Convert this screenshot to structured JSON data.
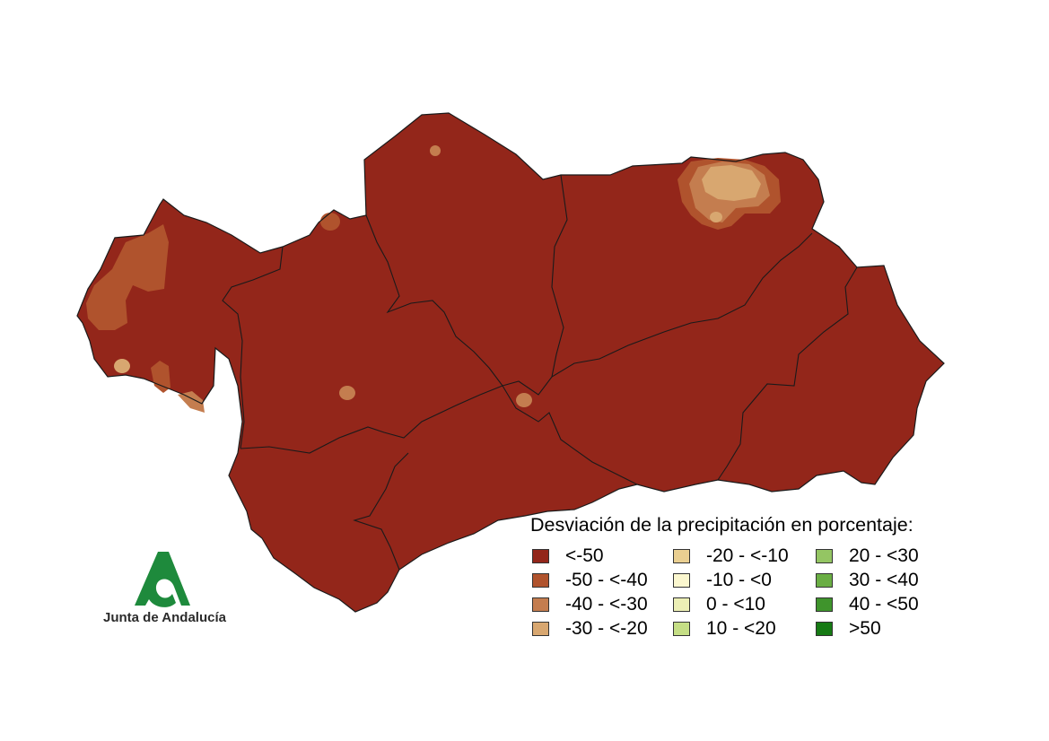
{
  "map": {
    "region_fill": "#93261a",
    "border_color": "#1a1a1a"
  },
  "legend": {
    "title": "Desviación de la precipitación en porcentaje:",
    "items": [
      {
        "label": "<-50",
        "color": "#93261a"
      },
      {
        "label": "-50 - <-40",
        "color": "#b0532d"
      },
      {
        "label": "-40 - <-30",
        "color": "#c47d4f"
      },
      {
        "label": "-30 - <-20",
        "color": "#d8a770"
      },
      {
        "label": "-20 - <-10",
        "color": "#eacf91"
      },
      {
        "label": "-10 - <0",
        "color": "#fbf7cf"
      },
      {
        "label": "0 - <10",
        "color": "#ecefb5"
      },
      {
        "label": "10 - <20",
        "color": "#c5de85"
      },
      {
        "label": "20 - <30",
        "color": "#94c563"
      },
      {
        "label": "30 - <40",
        "color": "#6aae44"
      },
      {
        "label": "40 - <50",
        "color": "#3f942c"
      },
      {
        "label": ">50",
        "color": "#167a14"
      }
    ]
  },
  "logo": {
    "text": "Junta de Andalucía",
    "color": "#1e8a3c"
  }
}
